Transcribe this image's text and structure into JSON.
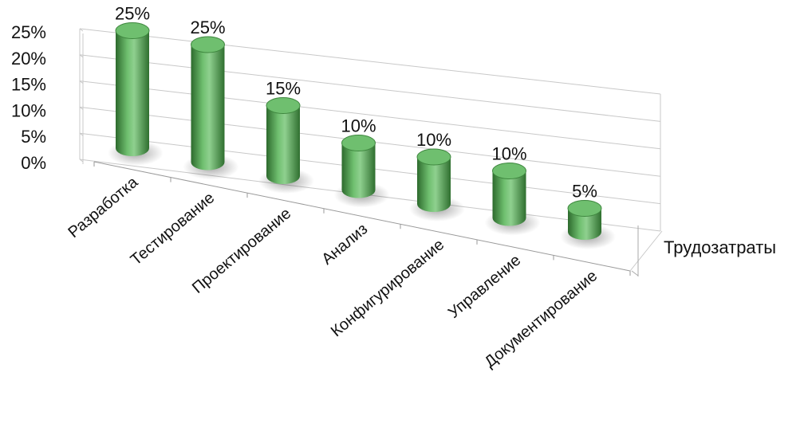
{
  "chart_data": {
    "type": "bar",
    "style": "3d-cylinder",
    "categories": [
      "Разработка",
      "Тестирование",
      "Проектирование",
      "Анализ",
      "Конфигурирование",
      "Управление",
      "Документирование"
    ],
    "series": [
      {
        "name": "Трудозатраты",
        "values": [
          25,
          25,
          15,
          10,
          10,
          10,
          5
        ],
        "color": "#4e9a4e"
      }
    ],
    "data_labels": [
      "25%",
      "25%",
      "15%",
      "10%",
      "10%",
      "10%",
      "5%"
    ],
    "y_ticks": [
      "0%",
      "5%",
      "10%",
      "15%",
      "20%",
      "25%"
    ],
    "ylim": [
      0,
      25
    ],
    "grid": true,
    "legend": "none",
    "colors": {
      "bar": "#4e9a4e",
      "bar_dark": "#2d6a2d",
      "bar_light": "#8fd08f",
      "top": "#6fbf6f",
      "grid": "#c8c8c8"
    }
  }
}
